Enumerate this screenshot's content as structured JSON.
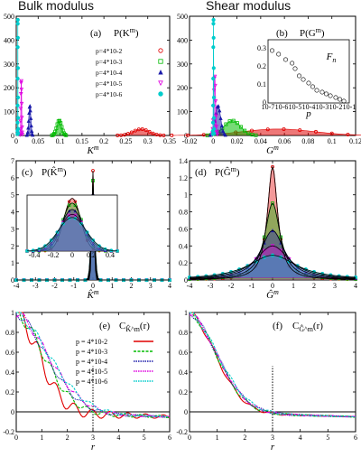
{
  "headings": {
    "left": "Bulk modulus",
    "right": "Shear modulus"
  },
  "colors": {
    "p1": "#e00000",
    "p2": "#00bb00",
    "p3": "#1a1aaa",
    "p4": "#e000e0",
    "p5": "#00cccc",
    "ref": "#000000"
  },
  "legend_dist": [
    "p=4*10-2",
    "p=4*10-3",
    "p=4*10-4",
    "p=4*10-5",
    "p=4*10-6"
  ],
  "legend_corr": [
    "p = 4*10-2",
    "p = 4*10-3",
    "p = 4*10-4",
    "p = 4*10-5",
    "p = 4*10-6"
  ],
  "chart_data": [
    {
      "panel": "a",
      "type": "line",
      "tag": "(a)",
      "ptitle": "P(K^m)",
      "xlabel": "K^m",
      "ylabel": "",
      "xlim": [
        0,
        0.35
      ],
      "ylim": [
        0,
        520
      ],
      "xticks": [
        "0",
        "0.05",
        "0.1",
        "0.15",
        "0.2",
        "0.25",
        "0.3",
        "0.35"
      ],
      "yticks": [
        "0",
        "100",
        "200",
        "300",
        "400",
        "500"
      ],
      "series": [
        {
          "key": "p1",
          "center": 0.285,
          "width": 0.018,
          "peak": 28
        },
        {
          "key": "p2",
          "center": 0.098,
          "width": 0.0055,
          "peak": 65
        },
        {
          "key": "p3",
          "center": 0.031,
          "width": 0.0023,
          "peak": 130
        },
        {
          "key": "p4",
          "center": 0.0115,
          "width": 0.0009,
          "peak": 240
        },
        {
          "key": "p5",
          "center": 0.0036,
          "width": 0.0003,
          "peak": 510
        }
      ]
    },
    {
      "panel": "b",
      "type": "line",
      "tag": "(b)",
      "ptitle": "P(G^m)",
      "xlabel": "G^m",
      "ylabel": "",
      "xlim": [
        -0.02,
        0.12
      ],
      "ylim": [
        0,
        520
      ],
      "xticks": [
        "-0.02",
        "0",
        "0.02",
        "0.04",
        "0.06",
        "0.08",
        "0.1",
        "0.12"
      ],
      "yticks": [
        "0",
        "100",
        "200",
        "300",
        "400",
        "500"
      ],
      "series": [
        {
          "key": "p1",
          "center": 0.055,
          "width": 0.03,
          "peak": 28
        },
        {
          "key": "p2",
          "center": 0.016,
          "width": 0.007,
          "peak": 65
        },
        {
          "key": "p3",
          "center": 0.004,
          "width": 0.0022,
          "peak": 130
        },
        {
          "key": "p4",
          "center": 0.0012,
          "width": 0.0008,
          "peak": 260
        },
        {
          "key": "p5",
          "center": 0.0002,
          "width": 0.0002,
          "peak": 510
        }
      ],
      "inset": {
        "type": "scatter",
        "label": "F_n",
        "xlabel": "p",
        "xlog": true,
        "xlim": [
          1e-07,
          0.1
        ],
        "ylim": [
          0,
          0.35
        ],
        "xticks": [
          "10-7",
          "10-6",
          "10-5",
          "10-4",
          "10-3",
          "10-2",
          "10-1"
        ],
        "yticks": [
          "0",
          "0.1",
          "0.2",
          "0.3"
        ],
        "x": [
          2e-07,
          6e-07,
          2e-06,
          6e-06,
          1e-05,
          2e-05,
          4e-05,
          0.0001,
          0.0002,
          0.0004,
          0.001,
          0.002,
          0.004,
          0.01,
          0.02,
          0.04
        ],
        "y": [
          0.29,
          0.27,
          0.24,
          0.22,
          0.19,
          0.15,
          0.13,
          0.11,
          0.09,
          0.07,
          0.06,
          0.05,
          0.04,
          0.03,
          0.02,
          0.01
        ]
      }
    },
    {
      "panel": "c",
      "type": "line",
      "tag": "(c)",
      "ptitle": "P(K̂^m)",
      "xlabel": "K̂^m",
      "ylabel": "",
      "xlim": [
        -4,
        4
      ],
      "ylim": [
        0,
        7.2
      ],
      "xticks": [
        "-4",
        "-3",
        "-2",
        "-1",
        "0",
        "1",
        "2",
        "3",
        "4"
      ],
      "yticks": [
        "0",
        "1",
        "2",
        "3",
        "4",
        "5",
        "6",
        "7"
      ],
      "series": [
        {
          "key": "p1",
          "scale": 0.06,
          "peak": 6.6
        },
        {
          "key": "p2",
          "scale": 0.07,
          "peak": 6.0
        },
        {
          "key": "p3",
          "scale": 0.08,
          "peak": 5.2
        },
        {
          "key": "p4",
          "scale": 0.09,
          "peak": 4.6
        },
        {
          "key": "p5",
          "scale": 0.1,
          "peak": 4.2
        }
      ],
      "inset": {
        "xlim": [
          -0.45,
          0.45
        ],
        "ylim": [
          0,
          7
        ],
        "xticks": [
          "-0.4",
          "-0.2",
          "0",
          "0.2",
          "0.4"
        ]
      }
    },
    {
      "panel": "d",
      "type": "line",
      "tag": "(d)",
      "ptitle": "P(Ĝ^m)",
      "xlabel": "Ĝ^m",
      "ylabel": "",
      "xlim": [
        -4,
        4
      ],
      "ylim": [
        0,
        1.4
      ],
      "xticks": [
        "-4",
        "-3",
        "-2",
        "-1",
        "0",
        "1",
        "2",
        "3",
        "4"
      ],
      "yticks": [
        "0",
        "0.2",
        "0.4",
        "0.6",
        "0.8",
        "1",
        "1.2",
        "1.4"
      ],
      "series": [
        {
          "key": "p1",
          "scale": 0.3,
          "peak": 1.33
        },
        {
          "key": "p2",
          "scale": 0.45,
          "peak": 0.9
        },
        {
          "key": "p3",
          "scale": 0.7,
          "peak": 0.58
        },
        {
          "key": "p4",
          "scale": 1.0,
          "peak": 0.4
        },
        {
          "key": "p5",
          "scale": 1.4,
          "peak": 0.29
        }
      ]
    },
    {
      "panel": "e",
      "type": "line",
      "tag": "(e)",
      "ptitle": "C_{K̂^m}(r)",
      "xlabel": "r",
      "ylabel": "",
      "xlim": [
        0,
        6
      ],
      "ylim": [
        -0.2,
        1
      ],
      "xticks": [
        "0",
        "1",
        "2",
        "3",
        "4",
        "5",
        "6"
      ],
      "yticks": [
        "-0.2",
        "0",
        "0.2",
        "0.4",
        "0.6",
        "0.8",
        "1"
      ],
      "vline": 3,
      "series": [
        {
          "key": "p1",
          "decay": 1.4,
          "noise": 0.12
        },
        {
          "key": "p2",
          "decay": 1.75,
          "noise": 0.07
        },
        {
          "key": "p3",
          "decay": 1.95,
          "noise": 0.05
        },
        {
          "key": "p4",
          "decay": 2.1,
          "noise": 0.05
        },
        {
          "key": "p5",
          "decay": 2.2,
          "noise": 0.05
        }
      ]
    },
    {
      "panel": "f",
      "type": "line",
      "tag": "(f)",
      "ptitle": "C_{Ĝ^m}(r)",
      "xlabel": "r",
      "ylabel": "",
      "xlim": [
        0,
        6
      ],
      "ylim": [
        -0.2,
        1
      ],
      "xticks": [
        "0",
        "1",
        "2",
        "3",
        "4",
        "5",
        "6"
      ],
      "yticks": [
        "-0.2",
        "0",
        "0.2",
        "0.4",
        "0.6",
        "0.8",
        "1"
      ],
      "vline": 3,
      "series": [
        {
          "key": "p1",
          "decay": 1.5,
          "noise": 0.03
        },
        {
          "key": "p2",
          "decay": 1.55,
          "noise": 0.03
        },
        {
          "key": "p3",
          "decay": 1.6,
          "noise": 0.03
        },
        {
          "key": "p4",
          "decay": 1.6,
          "noise": 0.03
        },
        {
          "key": "p5",
          "decay": 1.65,
          "noise": 0.03
        }
      ]
    }
  ]
}
